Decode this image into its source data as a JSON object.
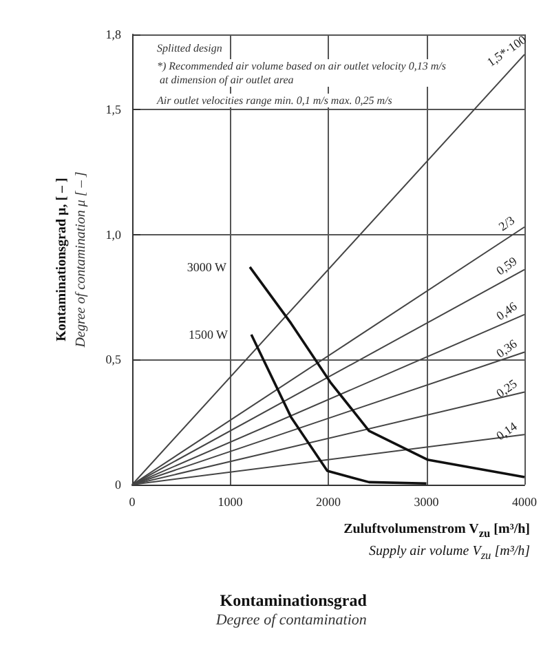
{
  "chart_data": {
    "type": "line",
    "title": "Kontaminationsgrad",
    "subtitle": "Degree of contamination",
    "xlabel": "Zuluftvolumenstrom V$_{zu}$ [m³/h]\nSupply air volume V$_{zu}$ [m³/h]",
    "ylabel": "Kontaminationsgrad μ, [ – ]\nDegree of contamination μ [ – ]",
    "annotations": [
      "Splitted design",
      "*) Recommended air volume based on air outlet velocity 0,13 m/s at dimension of air outlet area",
      "Air outlet velocities range min. 0,1 m/s max. 0,25 m/s"
    ],
    "xlim": [
      0,
      4000
    ],
    "xticks": [
      0,
      1000,
      2000,
      3000,
      4000
    ],
    "ylim": [
      0,
      1.8
    ],
    "yticks": [
      0,
      {
        "value": 0.5,
        "label": "0,5"
      },
      {
        "value": 1.0,
        "label": "1,0"
      },
      {
        "value": 1.5,
        "label": "1,5"
      },
      {
        "value": 1.8,
        "label": "1,8"
      }
    ],
    "grid": true,
    "series": [
      {
        "name": "1,5*·100",
        "color": "#444444",
        "x": [
          0,
          4000
        ],
        "values": [
          0,
          1.72
        ]
      },
      {
        "name": "2/3",
        "color": "#444444",
        "x": [
          0,
          4000
        ],
        "values": [
          0,
          1.03
        ]
      },
      {
        "name": "0,59",
        "color": "#444444",
        "x": [
          0,
          4000
        ],
        "values": [
          0,
          0.86
        ]
      },
      {
        "name": "0,46",
        "color": "#444444",
        "x": [
          0,
          4000
        ],
        "values": [
          0,
          0.68
        ]
      },
      {
        "name": "0,36",
        "color": "#444444",
        "x": [
          0,
          4000
        ],
        "values": [
          0,
          0.53
        ]
      },
      {
        "name": "0,25",
        "color": "#444444",
        "x": [
          0,
          4000
        ],
        "values": [
          0,
          0.37
        ]
      },
      {
        "name": "0,14",
        "color": "#444444",
        "x": [
          0,
          4000
        ],
        "values": [
          0,
          0.2
        ]
      },
      {
        "name": "3000 W",
        "color": "#111111",
        "x": [
          1200,
          1620,
          2020,
          2415,
          3010,
          4000
        ],
        "values": [
          0.87,
          0.645,
          0.41,
          0.215,
          0.1,
          0.03
        ]
      },
      {
        "name": "1500 W",
        "color": "#111111",
        "x": [
          1215,
          1620,
          1990,
          2415,
          3000
        ],
        "values": [
          0.6,
          0.27,
          0.055,
          0.01,
          0.005
        ]
      }
    ]
  }
}
